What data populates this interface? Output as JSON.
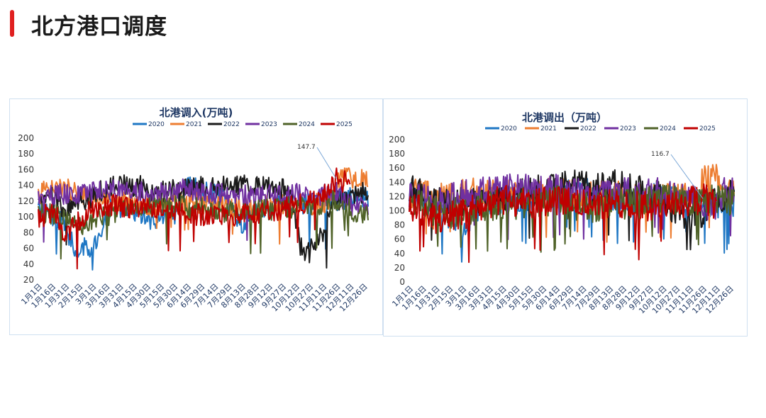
{
  "page": {
    "title": "北方港口调度"
  },
  "colors": {
    "accent_bar": "#e02020",
    "2020": "#1f77c4",
    "2021": "#ed7d31",
    "2022": "#1a1a1a",
    "2023": "#7030a0",
    "2024": "#4f6228",
    "2025": "#c00000"
  },
  "chart_data": [
    {
      "type": "line",
      "title": "北港调入(万吨)",
      "x_ticks": [
        "1月1日",
        "1月16日",
        "1月31日",
        "2月15日",
        "3月1日",
        "3月16日",
        "3月31日",
        "4月15日",
        "4月30日",
        "5月15日",
        "5月30日",
        "6月14日",
        "6月29日",
        "7月14日",
        "7月29日",
        "8月13日",
        "8月28日",
        "9月12日",
        "9月27日",
        "10月12日",
        "10月27日",
        "11月11日",
        "11月26日",
        "12月11日",
        "12月26日"
      ],
      "ylim": [
        20,
        200
      ],
      "y_ticks": [
        20,
        40,
        60,
        80,
        100,
        120,
        140,
        160,
        180,
        200
      ],
      "legend": [
        "2020",
        "2021",
        "2022",
        "2023",
        "2024",
        "2025"
      ],
      "legend_position": "top",
      "annotation": {
        "text": "147.7",
        "series": "2025"
      },
      "series": [
        {
          "name": "2020",
          "profile": [
            [
              0,
              110
            ],
            [
              30,
              90
            ],
            [
              40,
              60
            ],
            [
              55,
              60
            ],
            [
              70,
              80
            ],
            [
              80,
              110
            ],
            [
              100,
              115
            ],
            [
              115,
              100
            ],
            [
              130,
              95
            ],
            [
              150,
              100
            ],
            [
              165,
              140
            ],
            [
              190,
              130
            ],
            [
              210,
              120
            ],
            [
              225,
              90
            ],
            [
              240,
              110
            ],
            [
              260,
              115
            ],
            [
              300,
              115
            ],
            [
              330,
              120
            ],
            [
              345,
              125
            ],
            [
              365,
              125
            ]
          ]
        },
        {
          "name": "2021",
          "profile": [
            [
              0,
              130
            ],
            [
              20,
              135
            ],
            [
              40,
              135
            ],
            [
              60,
              115
            ],
            [
              90,
              120
            ],
            [
              120,
              115
            ],
            [
              160,
              120
            ],
            [
              200,
              115
            ],
            [
              240,
              110
            ],
            [
              260,
              115
            ],
            [
              300,
              115
            ],
            [
              320,
              120
            ],
            [
              335,
              150
            ],
            [
              350,
              150
            ],
            [
              365,
              145
            ]
          ]
        },
        {
          "name": "2022",
          "profile": [
            [
              0,
              115
            ],
            [
              15,
              125
            ],
            [
              30,
              110
            ],
            [
              50,
              120
            ],
            [
              80,
              140
            ],
            [
              110,
              140
            ],
            [
              130,
              130
            ],
            [
              160,
              135
            ],
            [
              200,
              140
            ],
            [
              240,
              140
            ],
            [
              270,
              135
            ],
            [
              280,
              130
            ],
            [
              290,
              60
            ],
            [
              300,
              55
            ],
            [
              310,
              70
            ],
            [
              320,
              95
            ],
            [
              330,
              120
            ],
            [
              350,
              130
            ],
            [
              365,
              130
            ]
          ]
        },
        {
          "name": "2023",
          "profile": [
            [
              0,
              125
            ],
            [
              40,
              130
            ],
            [
              80,
              135
            ],
            [
              120,
              130
            ],
            [
              160,
              135
            ],
            [
              200,
              130
            ],
            [
              240,
              125
            ],
            [
              280,
              130
            ],
            [
              300,
              125
            ],
            [
              330,
              130
            ],
            [
              345,
              115
            ],
            [
              365,
              110
            ]
          ]
        },
        {
          "name": "2024",
          "profile": [
            [
              0,
              105
            ],
            [
              30,
              100
            ],
            [
              50,
              85
            ],
            [
              70,
              100
            ],
            [
              100,
              110
            ],
            [
              140,
              115
            ],
            [
              180,
              110
            ],
            [
              220,
              105
            ],
            [
              260,
              110
            ],
            [
              300,
              115
            ],
            [
              330,
              120
            ],
            [
              345,
              110
            ],
            [
              365,
              100
            ]
          ]
        },
        {
          "name": "2025",
          "profile": [
            [
              0,
              100
            ],
            [
              20,
              105
            ],
            [
              30,
              70
            ],
            [
              40,
              90
            ],
            [
              60,
              110
            ],
            [
              80,
              115
            ],
            [
              120,
              110
            ],
            [
              160,
              105
            ],
            [
              200,
              100
            ],
            [
              240,
              105
            ],
            [
              270,
              110
            ],
            [
              290,
              115
            ],
            [
              315,
              130
            ],
            [
              330,
              148
            ],
            [
              345,
              142
            ]
          ]
        }
      ]
    },
    {
      "type": "line",
      "title": "北港调出（万吨）",
      "x_ticks": [
        "1月1日",
        "1月16日",
        "1月31日",
        "2月15日",
        "3月1日",
        "3月16日",
        "3月31日",
        "4月15日",
        "4月30日",
        "5月15日",
        "5月30日",
        "6月14日",
        "6月29日",
        "7月14日",
        "7月29日",
        "8月13日",
        "8月28日",
        "9月12日",
        "9月27日",
        "10月12日",
        "10月27日",
        "11月11日",
        "11月26日",
        "12月11日",
        "12月26日"
      ],
      "ylim": [
        0,
        200
      ],
      "y_ticks": [
        0,
        20,
        40,
        60,
        80,
        100,
        120,
        140,
        160,
        180,
        200
      ],
      "legend": [
        "2020",
        "2021",
        "2022",
        "2023",
        "2024",
        "2025"
      ],
      "legend_position": "top",
      "annotation": {
        "text": "116.7",
        "series": "2025"
      },
      "series": [
        {
          "name": "2020",
          "profile": [
            [
              0,
              120
            ],
            [
              40,
              100
            ],
            [
              60,
              80
            ],
            [
              80,
              110
            ],
            [
              120,
              115
            ],
            [
              160,
              120
            ],
            [
              200,
              125
            ],
            [
              240,
              120
            ],
            [
              280,
              120
            ],
            [
              320,
              115
            ],
            [
              345,
              110
            ],
            [
              365,
              110
            ]
          ]
        },
        {
          "name": "2021",
          "profile": [
            [
              0,
              125
            ],
            [
              40,
              120
            ],
            [
              80,
              125
            ],
            [
              120,
              120
            ],
            [
              160,
              125
            ],
            [
              200,
              120
            ],
            [
              240,
              120
            ],
            [
              280,
              115
            ],
            [
              320,
              120
            ],
            [
              335,
              150
            ],
            [
              350,
              140
            ],
            [
              365,
              125
            ]
          ]
        },
        {
          "name": "2022",
          "profile": [
            [
              0,
              130
            ],
            [
              40,
              110
            ],
            [
              80,
              115
            ],
            [
              120,
              125
            ],
            [
              160,
              130
            ],
            [
              200,
              140
            ],
            [
              240,
              135
            ],
            [
              280,
              120
            ],
            [
              300,
              100
            ],
            [
              320,
              90
            ],
            [
              340,
              110
            ],
            [
              365,
              125
            ]
          ]
        },
        {
          "name": "2023",
          "profile": [
            [
              0,
              120
            ],
            [
              40,
              115
            ],
            [
              80,
              130
            ],
            [
              120,
              130
            ],
            [
              160,
              130
            ],
            [
              200,
              125
            ],
            [
              240,
              125
            ],
            [
              280,
              125
            ],
            [
              320,
              120
            ],
            [
              340,
              100
            ],
            [
              355,
              130
            ],
            [
              365,
              125
            ]
          ]
        },
        {
          "name": "2024",
          "profile": [
            [
              0,
              115
            ],
            [
              40,
              95
            ],
            [
              80,
              105
            ],
            [
              120,
              110
            ],
            [
              160,
              115
            ],
            [
              200,
              105
            ],
            [
              240,
              110
            ],
            [
              280,
              115
            ],
            [
              320,
              110
            ],
            [
              345,
              115
            ],
            [
              365,
              110
            ]
          ]
        },
        {
          "name": "2025",
          "profile": [
            [
              0,
              110
            ],
            [
              30,
              90
            ],
            [
              60,
              95
            ],
            [
              100,
              115
            ],
            [
              140,
              110
            ],
            [
              180,
              115
            ],
            [
              220,
              110
            ],
            [
              260,
              105
            ],
            [
              300,
              110
            ],
            [
              330,
              117
            ],
            [
              345,
              110
            ]
          ]
        }
      ]
    }
  ]
}
